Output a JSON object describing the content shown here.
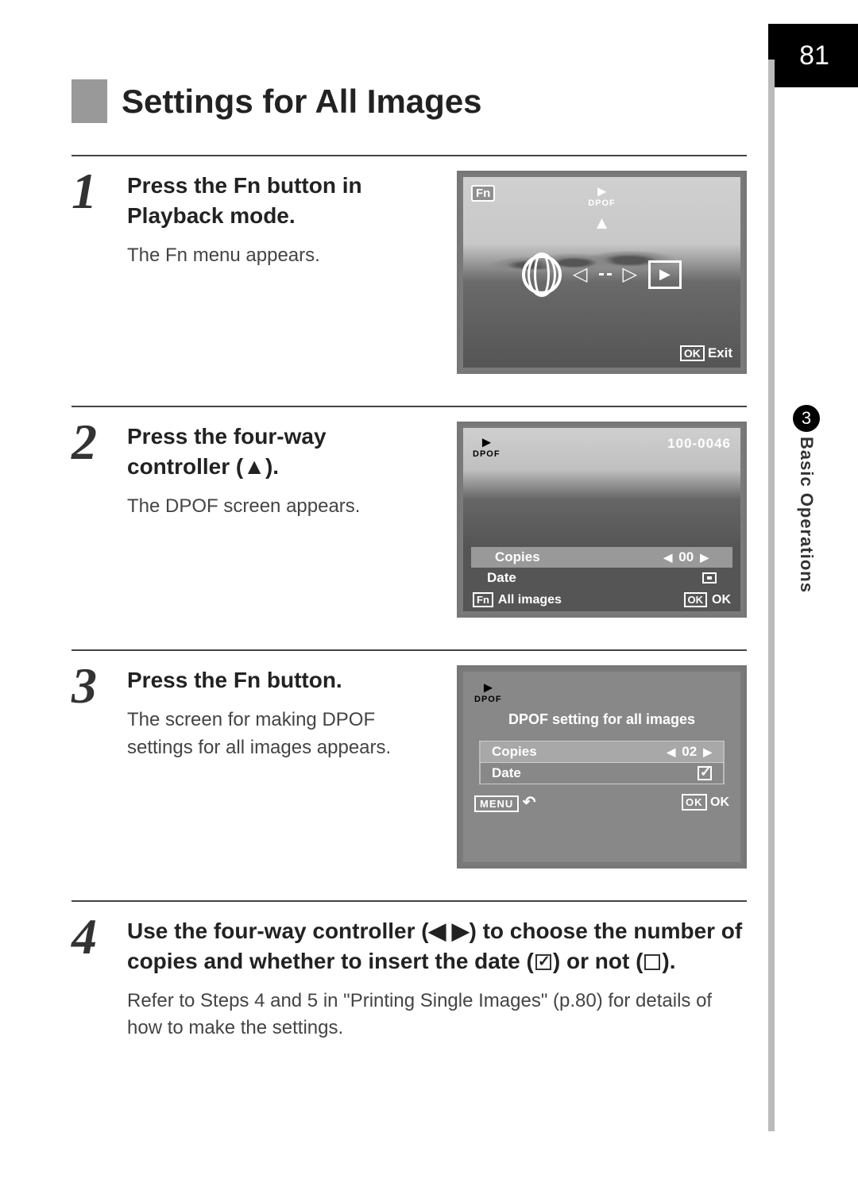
{
  "page_number": "81",
  "chapter": {
    "number": "3",
    "title": "Basic Operations"
  },
  "title": "Settings for All Images",
  "steps": [
    {
      "num": "1",
      "heading_parts": [
        "Press the ",
        "Fn",
        " button in Playback mode."
      ],
      "body": "The Fn menu appears.",
      "screen": {
        "fn_label": "Fn",
        "dpof_label": "DPOF",
        "ok_label": "OK",
        "exit_label": "Exit"
      }
    },
    {
      "num": "2",
      "heading": "Press the four-way controller (▲).",
      "body": "The DPOF screen appears.",
      "screen": {
        "dpof_label": "DPOF",
        "file_number": "100-0046",
        "copies_label": "Copies",
        "copies_value": "00",
        "date_label": "Date",
        "fn_label": "Fn",
        "all_images_label": "All images",
        "ok_label": "OK",
        "ok_text": "OK"
      }
    },
    {
      "num": "3",
      "heading_parts": [
        "Press the ",
        "Fn",
        " button."
      ],
      "body": "The screen for making DPOF settings for all images appears.",
      "screen": {
        "dpof_label": "DPOF",
        "title": "DPOF setting for all images",
        "copies_label": "Copies",
        "copies_value": "02",
        "date_label": "Date",
        "date_checked": true,
        "menu_label": "MENU",
        "ok_label": "OK",
        "ok_text": "OK"
      }
    },
    {
      "num": "4",
      "heading": "Use the four-way controller (◀ ▶) to choose the number of copies and whether to insert the date (☑) or not (☐).",
      "body": "Refer to Steps 4 and 5 in \"Printing Single Images\" (p.80) for details of how to make the settings."
    }
  ],
  "colors": {
    "page_bg": "#ffffff",
    "black": "#000000",
    "rail_gray": "#bbbbbb",
    "accent_gray": "#999999",
    "text": "#333333",
    "lcd_border": "#777777",
    "lcd_bg": "#555555"
  }
}
